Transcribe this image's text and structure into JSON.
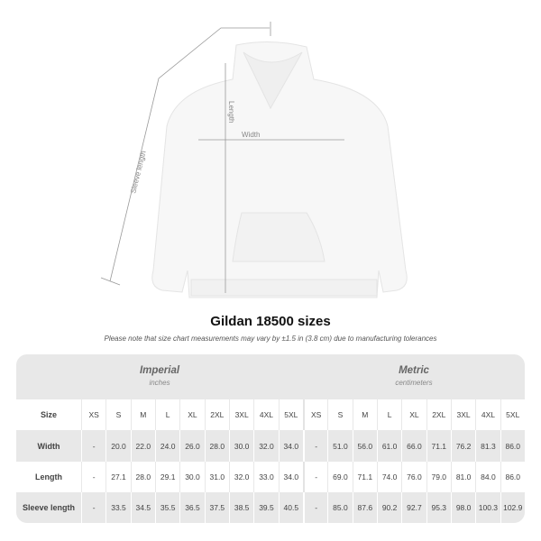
{
  "diagram": {
    "sleeve_label": "Sleeve length",
    "length_label": "Length",
    "width_label": "Width"
  },
  "title": "Gildan 18500 sizes",
  "note": "Please note that size chart measurements may vary by ±1.5 in (3.8 cm) due to manufacturing tolerances",
  "imperial": {
    "title": "Imperial",
    "unit": "inches"
  },
  "metric": {
    "title": "Metric",
    "unit": "centimeters"
  },
  "size_label": "Size",
  "sizes": [
    "XS",
    "S",
    "M",
    "L",
    "XL",
    "2XL",
    "3XL",
    "4XL",
    "5XL"
  ],
  "rows": [
    {
      "label": "Width",
      "imperial": [
        "-",
        "20.0",
        "22.0",
        "24.0",
        "26.0",
        "28.0",
        "30.0",
        "32.0",
        "34.0"
      ],
      "metric": [
        "-",
        "51.0",
        "56.0",
        "61.0",
        "66.0",
        "71.1",
        "76.2",
        "81.3",
        "86.0"
      ]
    },
    {
      "label": "Length",
      "imperial": [
        "-",
        "27.1",
        "28.0",
        "29.1",
        "30.0",
        "31.0",
        "32.0",
        "33.0",
        "34.0"
      ],
      "metric": [
        "-",
        "69.0",
        "71.1",
        "74.0",
        "76.0",
        "79.0",
        "81.0",
        "84.0",
        "86.0"
      ]
    },
    {
      "label": "Sleeve length",
      "imperial": [
        "-",
        "33.5",
        "34.5",
        "35.5",
        "36.5",
        "37.5",
        "38.5",
        "39.5",
        "40.5"
      ],
      "metric": [
        "-",
        "85.0",
        "87.6",
        "90.2",
        "92.7",
        "95.3",
        "98.0",
        "100.3",
        "102.9"
      ]
    }
  ],
  "colors": {
    "table_gray": "#e8e8e8",
    "line": "#999999"
  }
}
